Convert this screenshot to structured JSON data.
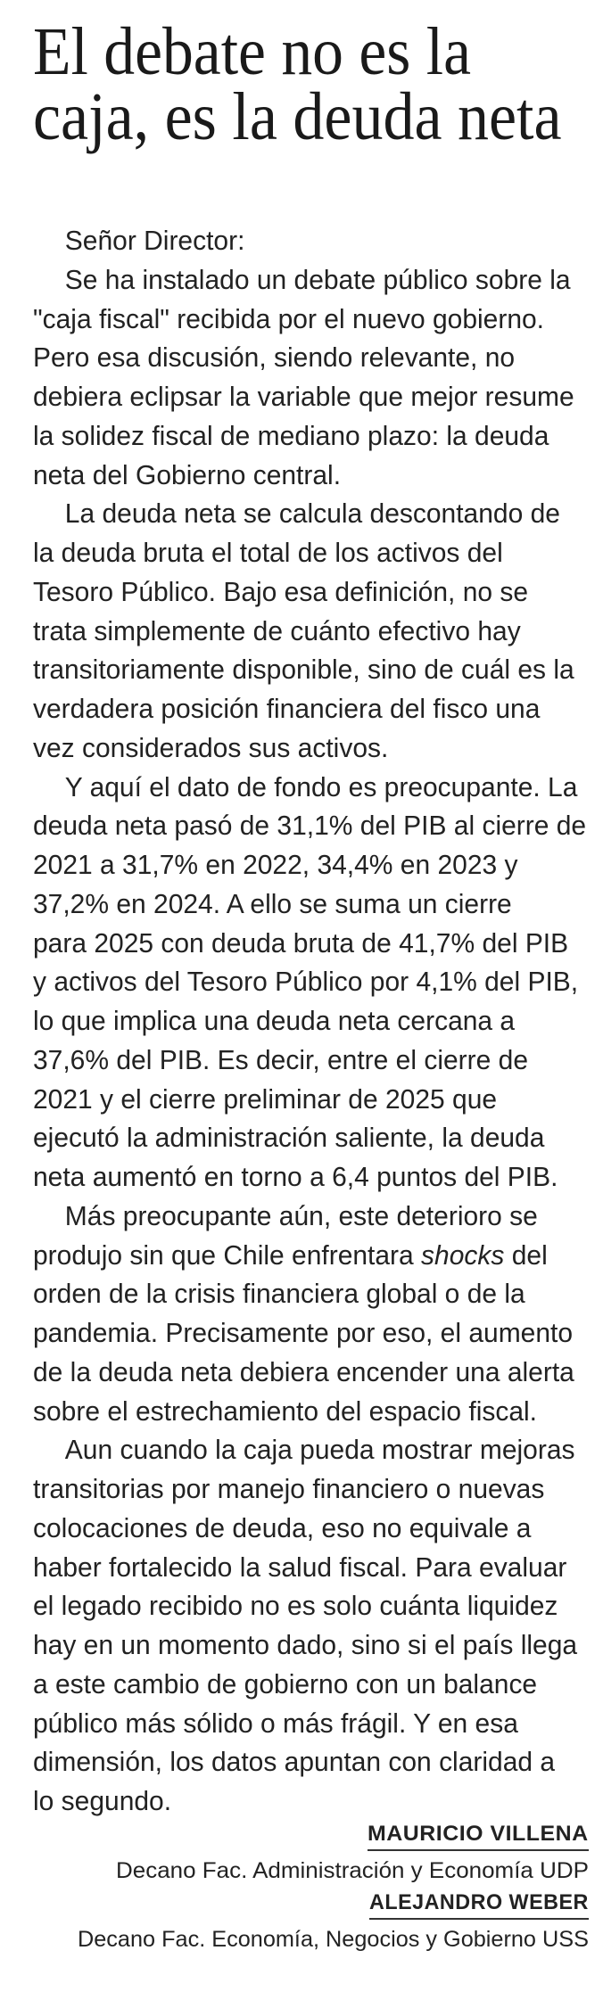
{
  "headline": {
    "lines": [
      "El debate no es la",
      "caja, es la deuda neta"
    ]
  },
  "letter": {
    "salutation": "Señor Director:",
    "paragraphs": [
      {
        "lines": [
          "Se ha instalado un debate público sobre la",
          "\"caja fiscal\" recibida por el nuevo gobierno.",
          "Pero esa discusión, siendo relevante, no",
          "debiera eclipsar la variable que mejor resume",
          "la solidez fiscal de mediano plazo: la deuda",
          "neta del Gobierno central."
        ]
      },
      {
        "lines": [
          "La deuda neta se calcula descontando de",
          "la deuda bruta el total de los activos del",
          "Tesoro Público. Bajo esa definición, no se",
          "trata simplemente de cuánto efectivo hay",
          "transitoriamente disponible, sino de cuál es la",
          "verdadera posición financiera del fisco una",
          "vez considerados sus activos."
        ]
      },
      {
        "lines": [
          "Y aquí el dato de fondo es preocupante. La",
          "deuda neta pasó de 31,1% del PIB al cierre de",
          "2021 a 31,7% en 2022, 34,4% en 2023 y",
          "37,2% en 2024. A ello se suma un cierre",
          "para 2025 con deuda bruta de 41,7% del PIB",
          "y activos del Tesoro Público por 4,1% del PIB,",
          "lo que implica una deuda neta cercana a",
          "37,6% del PIB. Es decir, entre el cierre de",
          "2021 y el cierre preliminar de 2025 que",
          "ejecutó la administración saliente, la deuda",
          "neta aumentó en torno a 6,4 puntos del PIB."
        ]
      },
      {
        "lines": [
          "Más preocupante aún, este deterioro se",
          "produjo sin que Chile enfrentara shocks del",
          "orden de la crisis financiera global o de la",
          "pandemia. Precisamente por eso, el aumento",
          "de la deuda neta debiera encender una alerta",
          "sobre el estrechamiento del espacio fiscal."
        ]
      },
      {
        "lines": [
          "Aun cuando la caja pueda mostrar mejoras",
          "transitorias por manejo financiero o nuevas",
          "colocaciones de deuda, eso no equivale a",
          "haber fortalecido la salud fiscal. Para evaluar",
          "el legado recibido no es solo cuánta liquidez",
          "hay en un momento dado, sino si el país llega",
          "a este cambio de gobierno con un balance",
          "público más sólido o más frágil. Y en esa",
          "dimensión, los datos apuntan con claridad a",
          "lo segundo."
        ]
      }
    ],
    "italic_word": "shocks"
  },
  "signatures": [
    {
      "name": "MAURICIO VILLENA",
      "role": "Decano Fac. Administración y Economía UDP"
    },
    {
      "name": "ALEJANDRO WEBER",
      "role": "Decano Fac. Economía, Negocios y Gobierno USS"
    }
  ]
}
